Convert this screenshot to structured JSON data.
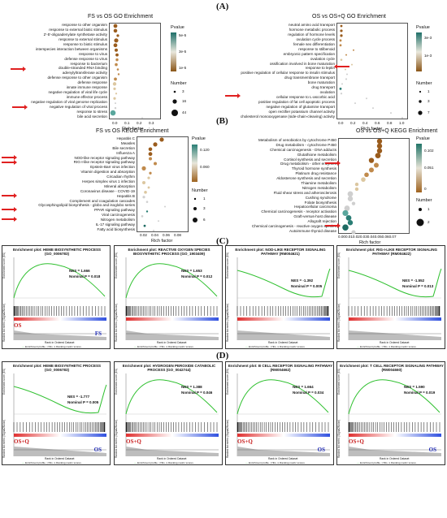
{
  "panels": {
    "A": "(A)",
    "B": "(B)",
    "C": "(C)",
    "D": "(D)"
  },
  "go1": {
    "title": "FS vs OS   GO Enrichment",
    "terms": [
      "response to other organism",
      "response to external biotic stimulus",
      "2'-5'-oligoadenylate synthetase activity",
      "response to external stimulus",
      "response to biotic stimulus",
      "interspecies interaction between organisms",
      "response to virus",
      "defense response to virus",
      "response to bacterium",
      "double-stranded RNA binding",
      "adenylyltransferase activity",
      "defense response to other organism",
      "defense response",
      "innate immune response",
      "negative regulation of viral life cycle",
      "immune effector process",
      "negative regulation of viral genome replication",
      "negative regulation of viral process",
      "response to stress",
      "bile acid secretion"
    ],
    "xticks": [
      "0.0",
      "0.1",
      "0.2",
      "0.3"
    ],
    "xlabel": "Rich factor",
    "legend_color_title": "Pvalue",
    "cbar": [
      "5e-5",
      "3e-5",
      "1e-5"
    ],
    "legend_size_title": "Number",
    "sizes": [
      "3",
      "16",
      "44"
    ]
  },
  "go2": {
    "title": "OS vs OS+Q   GO Enrichment",
    "terms": [
      "neutral amino acid transport",
      "hormone metabolic process",
      "regulation of hormone levels",
      "ovulation cycle process",
      "female sex differentiation",
      "response to stilbenoid",
      "embryonic pattern specification",
      "ovulation cycle",
      "ossification involved in bone maturation",
      "response to leptin",
      "positive regulation of cellular response to insulin stimulus",
      "drug transmembrane transport",
      "bone maturation",
      "drug transport",
      "ovulation",
      "cellular response to L-ascorbic acid",
      "positive regulation of fat cell apoptotic process",
      "negative regulation of glutamine transport",
      "open rectifier potassium channel activity",
      "cholesterol monooxygenase (side-chain-cleaving) activity"
    ],
    "xticks": [
      "0.0",
      "0.2",
      "0.4",
      "0.6",
      "0.8",
      "1.0"
    ],
    "xlabel": "Rich factor",
    "legend_color_title": "Pvalue",
    "cbar": [
      "3e-3",
      "1e-3"
    ],
    "legend_size_title": "Number",
    "sizes": [
      "1",
      "3",
      "7"
    ]
  },
  "kegg1": {
    "title": "FS vs OS   KEGG Enrichment",
    "terms": [
      "Hepatitis C",
      "Measles",
      "Bile secretion",
      "Influenza A",
      "NOD-like receptor signaling pathway",
      "RIG-I-like receptor signaling pathway",
      "Epstein-Barr virus infection",
      "Vitamin digestion and absorption",
      "Circadian rhythm",
      "Herpes simplex virus 1 infection",
      "Mineral absorption",
      "Coronavirus disease - COVID-19",
      "Hepatitis B",
      "Complement and coagulation cascades",
      "Glycosphingolipid biosynthesis - globo and isoglobo series",
      "PPAR signaling pathway",
      "Viral carcinogenesis",
      "Nitrogen metabolism",
      "IL-17 signaling pathway",
      "Fatty acid biosynthesis"
    ],
    "xticks": [
      "0.02",
      "0.04",
      "0.06",
      "0.08"
    ],
    "xlabel": "Rich factor",
    "legend_color_title": "Pvalue",
    "cbar": [
      "0.120",
      "0.060"
    ],
    "legend_size_title": "Number",
    "sizes": [
      "1",
      "3",
      "6"
    ]
  },
  "kegg2": {
    "title": "OS vs OS+Q   KEGG Enrichment",
    "terms": [
      "Metabolism of xenobiotics by cytochrome P450",
      "Drug metabolism - cytochrome P450",
      "Chemical carcinogenesis - DNA adducts",
      "Glutathione metabolism",
      "Cortisol synthesis and secretion",
      "Drug metabolism - other enzymes",
      "Thyroid hormone synthesis",
      "Platinum drug resistance",
      "Aldosterone synthesis and secretion",
      "Thiamine metabolism",
      "Nitrogen metabolism",
      "Fluid shear stress and atherosclerosis",
      "Cushing syndrome",
      "Folate biosynthesis",
      "Hepatocellular carcinoma",
      "Chemical carcinogenesis - receptor activation",
      "Graft-versus-host disease",
      "Allograft rejection",
      "Chemical carcinogenesis - reactive oxygen species",
      "Autoimmune thyroid disease"
    ],
    "xticks": [
      "0.000.010.020.030.040.050.060.07"
    ],
    "xlabel": "Rich factor",
    "legend_color_title": "Pvalue",
    "cbar": [
      "0.102",
      "0.051",
      "0"
    ],
    "legend_size_title": "Number",
    "sizes": [
      "1",
      "2"
    ]
  },
  "gsea": {
    "ylabel": "Enrichment score (ES)",
    "ylabel2": "Ranked list metric (Signal2Noise)",
    "xlabel": "Rank in Ordered Dataset",
    "legend1": "Enrichment profile",
    "legend2": "Hits",
    "legend3": "Ranking metric scores",
    "c": [
      {
        "title": "Enrichment plot: HEME BIOSYNTHETIC PROCESS (GO_0006783)",
        "nes": "NES = 1.666",
        "p": "Nominal P = 0.018",
        "left": "OS",
        "right": "FS"
      },
      {
        "title": "Enrichment plot: REACTIVE OXYGEN SPECIES BIOSYNTHETIC PROCESS (GO_1903409)",
        "nes": "NES = 1.653",
        "p": "Nominal P = 0.012",
        "left": "",
        "right": ""
      },
      {
        "title": "Enrichment plot: NOD-LIKE RECEPTOR SIGNALING PATHWAY (RM004621)",
        "nes": "NES = -1.392",
        "p": "Nominal P = 0.005",
        "left": "",
        "right": ""
      },
      {
        "title": "Enrichment plot: RIG-I-LIKE RECEPTOR SIGNALING PATHWAY (RM004622)",
        "nes": "NES = -1.552",
        "p": "Nominal P = 0.013",
        "left": "",
        "right": ""
      }
    ],
    "d": [
      {
        "title": "Enrichment plot: HEME BIOSYNTHETIC PROCESS (GO_0006783)",
        "nes": "NES = -1.777",
        "p": "Nominal P = 0.005",
        "left": "OS+Q",
        "right": "OS"
      },
      {
        "title": "Enrichment plot: HYDROGEN PEROXIDE CATABOLIC PROCESS (GO_0042744)",
        "nes": "NES = 1.388",
        "p": "Nominal P = 0.046",
        "left": "OS+Q",
        "right": ""
      },
      {
        "title": "Enrichment plot: B CELL RECEPTOR SIGNALING PATHWAY (RM004662)",
        "nes": "NES = 1.664",
        "p": "Nominal P = 0.034",
        "left": "OS+Q",
        "right": "OS"
      },
      {
        "title": "Enrichment plot: T CELL RECEPTOR SIGNALING PATHWAY (RM004660)",
        "nes": "NES = 1.590",
        "p": "Nominal P = 0.019",
        "left": "OS+Q",
        "right": "OS"
      }
    ]
  }
}
